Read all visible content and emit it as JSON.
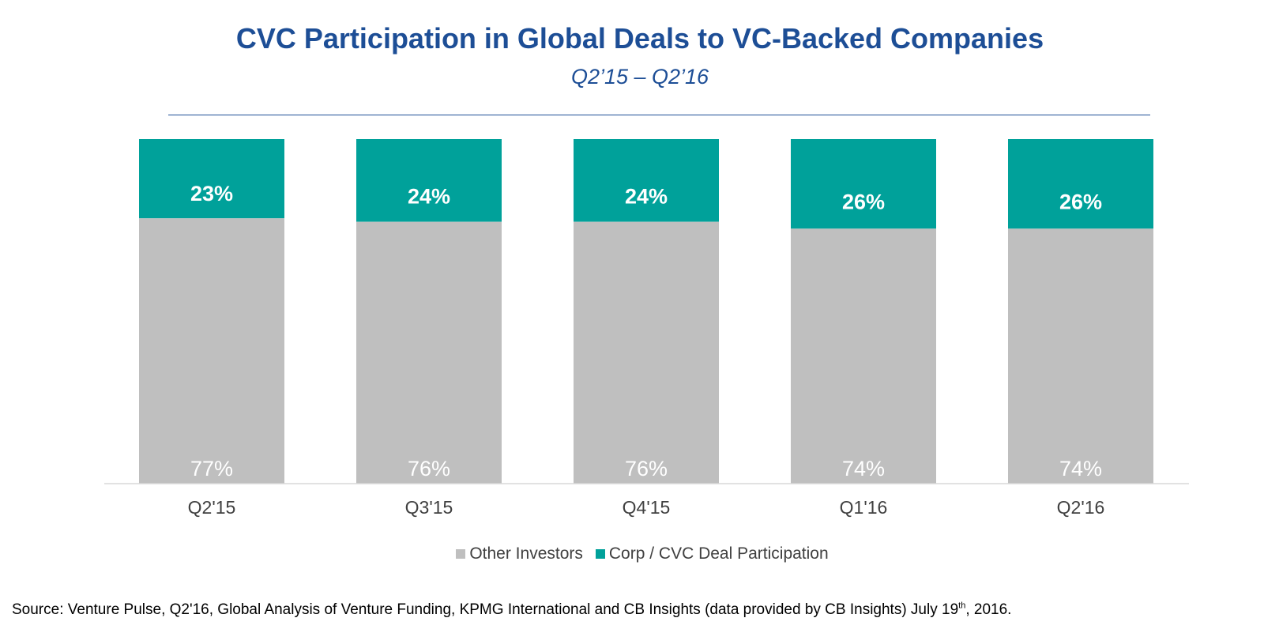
{
  "title": "CVC Participation in Global Deals to VC-Backed Companies",
  "subtitle": "Q2’15 – Q2’16",
  "colors": {
    "title": "#1d4e96",
    "cvc": "#00a19a",
    "other": "#bfbfbf",
    "axis": "#d9d9d9"
  },
  "chart_data": {
    "type": "bar",
    "stacked": true,
    "percent_stacked": true,
    "categories": [
      "Q2'15",
      "Q3'15",
      "Q4'15",
      "Q1'16",
      "Q2'16"
    ],
    "series": [
      {
        "name": "Other Investors",
        "values": [
          77,
          76,
          76,
          74,
          74
        ],
        "labels": [
          "77%",
          "76%",
          "76%",
          "74%",
          "74%"
        ]
      },
      {
        "name": "Corp / CVC Deal Participation",
        "values": [
          23,
          24,
          24,
          26,
          26
        ],
        "labels": [
          "23%",
          "24%",
          "24%",
          "26%",
          "26%"
        ]
      }
    ],
    "ylim": [
      0,
      100
    ],
    "legend": "bottom-center",
    "grid": false
  },
  "legend": {
    "other_label": "Other Investors",
    "cvc_label": "Corp / CVC Deal Participation"
  },
  "source": {
    "text_before": "Source: Venture Pulse, Q2'16, Global Analysis of Venture Funding, KPMG International and CB Insights (data provided by CB Insights) July 19",
    "superscript": "th",
    "text_after": ", 2016."
  }
}
